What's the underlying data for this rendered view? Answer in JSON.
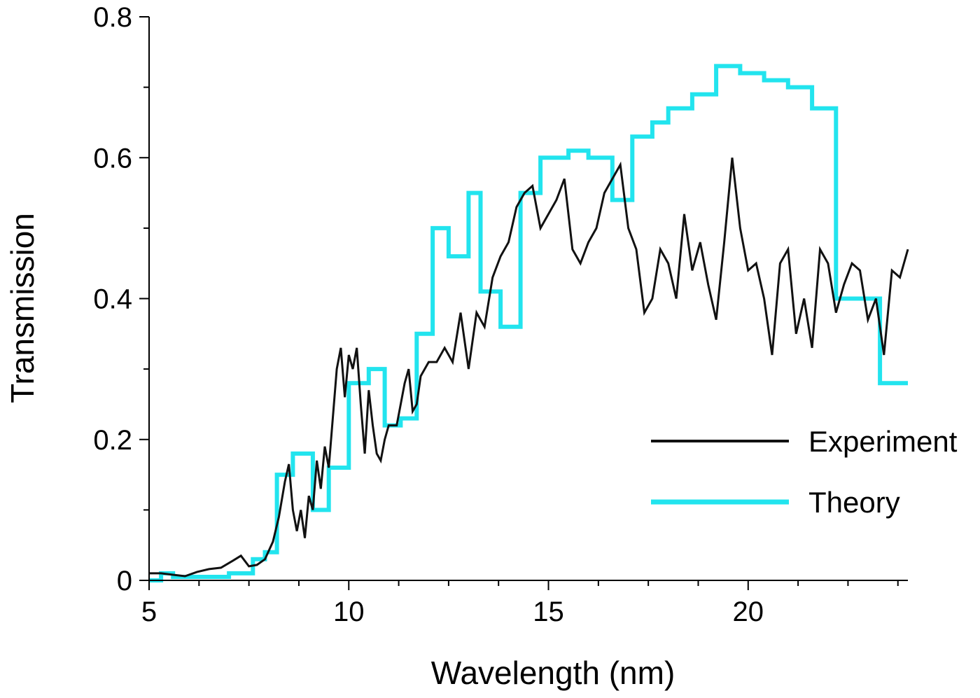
{
  "chart_data": {
    "type": "line",
    "title": "",
    "xlabel": "Wavelength (nm)",
    "ylabel": "Transmission",
    "xlim": [
      5,
      24
    ],
    "ylim": [
      0,
      0.8
    ],
    "x_ticks": [
      "5",
      "10",
      "15",
      "20"
    ],
    "y_ticks": [
      "0",
      "0.2",
      "0.4",
      "0.6",
      "0.8"
    ],
    "grid": false,
    "legend_position": "center-right",
    "colors": {
      "Experiment": "#111111",
      "Theory": "#22e4ee"
    },
    "series": [
      {
        "name": "Experiment",
        "step": false,
        "x": [
          5.0,
          5.3,
          5.6,
          5.9,
          6.2,
          6.5,
          6.8,
          7.1,
          7.3,
          7.5,
          7.7,
          7.9,
          8.1,
          8.25,
          8.4,
          8.5,
          8.6,
          8.7,
          8.8,
          8.9,
          9.0,
          9.1,
          9.2,
          9.3,
          9.4,
          9.5,
          9.6,
          9.7,
          9.8,
          9.9,
          10.0,
          10.1,
          10.2,
          10.3,
          10.4,
          10.5,
          10.6,
          10.7,
          10.8,
          10.9,
          11.0,
          11.2,
          11.4,
          11.5,
          11.6,
          11.7,
          11.8,
          12.0,
          12.2,
          12.4,
          12.6,
          12.8,
          13.0,
          13.2,
          13.4,
          13.6,
          13.8,
          14.0,
          14.2,
          14.4,
          14.6,
          14.8,
          15.0,
          15.2,
          15.4,
          15.6,
          15.8,
          16.0,
          16.2,
          16.4,
          16.6,
          16.8,
          17.0,
          17.2,
          17.4,
          17.6,
          17.8,
          18.0,
          18.2,
          18.4,
          18.6,
          18.8,
          19.0,
          19.2,
          19.4,
          19.6,
          19.8,
          20.0,
          20.2,
          20.4,
          20.6,
          20.8,
          21.0,
          21.2,
          21.4,
          21.6,
          21.8,
          22.0,
          22.2,
          22.4,
          22.6,
          22.8,
          23.0,
          23.2,
          23.4,
          23.6,
          23.8,
          24.0
        ],
        "y": [
          0.01,
          0.01,
          0.008,
          0.006,
          0.012,
          0.016,
          0.018,
          0.028,
          0.035,
          0.02,
          0.022,
          0.03,
          0.055,
          0.09,
          0.14,
          0.165,
          0.1,
          0.07,
          0.1,
          0.06,
          0.12,
          0.1,
          0.17,
          0.13,
          0.19,
          0.16,
          0.23,
          0.3,
          0.33,
          0.26,
          0.32,
          0.3,
          0.33,
          0.25,
          0.18,
          0.27,
          0.22,
          0.18,
          0.17,
          0.2,
          0.22,
          0.22,
          0.28,
          0.3,
          0.24,
          0.25,
          0.29,
          0.31,
          0.31,
          0.33,
          0.31,
          0.38,
          0.3,
          0.38,
          0.36,
          0.43,
          0.46,
          0.48,
          0.53,
          0.55,
          0.56,
          0.5,
          0.52,
          0.54,
          0.57,
          0.47,
          0.45,
          0.48,
          0.5,
          0.55,
          0.57,
          0.59,
          0.5,
          0.47,
          0.38,
          0.4,
          0.47,
          0.45,
          0.4,
          0.52,
          0.44,
          0.48,
          0.42,
          0.37,
          0.48,
          0.6,
          0.5,
          0.44,
          0.45,
          0.4,
          0.32,
          0.45,
          0.47,
          0.35,
          0.4,
          0.33,
          0.47,
          0.45,
          0.38,
          0.42,
          0.45,
          0.44,
          0.37,
          0.4,
          0.32,
          0.44,
          0.43,
          0.47
        ]
      },
      {
        "name": "Theory",
        "step": true,
        "x": [
          5.0,
          5.3,
          5.6,
          6.3,
          7.0,
          7.6,
          7.9,
          8.2,
          8.6,
          9.1,
          9.5,
          10.0,
          10.5,
          10.9,
          11.3,
          11.7,
          12.1,
          12.5,
          13.0,
          13.3,
          13.8,
          14.3,
          14.8,
          15.5,
          16.0,
          16.6,
          17.1,
          17.6,
          18.0,
          18.6,
          19.2,
          19.8,
          20.4,
          21.0,
          21.6,
          22.2,
          22.6,
          23.3,
          24.0
        ],
        "y": [
          0.0,
          0.01,
          0.005,
          0.005,
          0.01,
          0.03,
          0.04,
          0.15,
          0.18,
          0.1,
          0.16,
          0.28,
          0.3,
          0.22,
          0.23,
          0.35,
          0.5,
          0.46,
          0.55,
          0.41,
          0.36,
          0.55,
          0.6,
          0.61,
          0.6,
          0.54,
          0.63,
          0.65,
          0.67,
          0.69,
          0.73,
          0.72,
          0.71,
          0.7,
          0.67,
          0.4,
          0.4,
          0.28,
          0.28
        ]
      }
    ]
  }
}
